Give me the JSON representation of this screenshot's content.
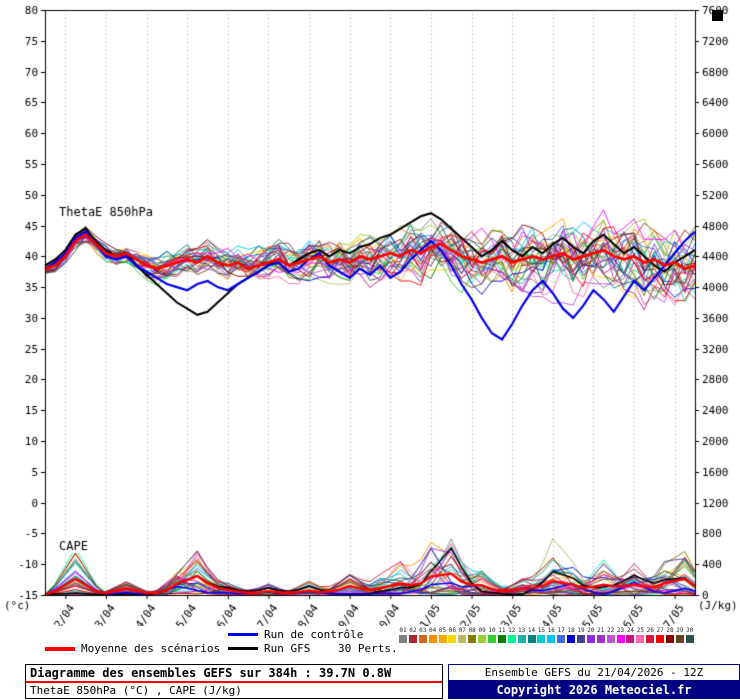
{
  "chart_data": {
    "type": "line",
    "x_start_label": "21/04 12Z",
    "x_step_hours": 6,
    "x_points": 65,
    "x_day_labels": [
      "22/04",
      "23/04",
      "24/04",
      "25/04",
      "26/04",
      "27/04",
      "28/04",
      "29/04",
      "30/04",
      "01/05",
      "02/05",
      "03/05",
      "04/05",
      "05/05",
      "06/05",
      "07/05"
    ],
    "y_left": {
      "label": "(°c)",
      "min": -15,
      "max": 80,
      "ticks": [
        80,
        75,
        70,
        65,
        60,
        55,
        50,
        45,
        40,
        35,
        30,
        25,
        20,
        15,
        10,
        5,
        0,
        -5,
        -10,
        -15
      ]
    },
    "y_right": {
      "label": "(J/kg)",
      "min": 0,
      "max": 7600,
      "ticks": [
        7600,
        7200,
        6800,
        6400,
        6000,
        5600,
        5200,
        4800,
        4400,
        4000,
        3600,
        3200,
        2800,
        2400,
        2000,
        1600,
        1200,
        800,
        400,
        0
      ]
    },
    "inner_labels": [
      "ThetaE 850hPa",
      "CAPE"
    ],
    "series": [
      {
        "name": "Moyenne des scénarios",
        "color": "#ff0000",
        "width": 2.8,
        "values": [
          38,
          38.5,
          40,
          42.5,
          43.5,
          42,
          40.5,
          40,
          40.5,
          39.5,
          38.5,
          38,
          38.5,
          39,
          39.5,
          39,
          40,
          39,
          38.5,
          39,
          38,
          38.5,
          39,
          39.5,
          38.5,
          39,
          39.5,
          40,
          39,
          39.5,
          39,
          40,
          39.5,
          40,
          40.5,
          40,
          41,
          40.5,
          41.5,
          42,
          41,
          40,
          39.5,
          39,
          39.5,
          40,
          39,
          39.5,
          40,
          39.5,
          40,
          40.5,
          39.5,
          40,
          40.5,
          41,
          40,
          39.5,
          40,
          39,
          39.5,
          38.5,
          39,
          38,
          38.5
        ]
      },
      {
        "name": "Run de contrôle",
        "color": "#0000ee",
        "width": 2.2,
        "values": [
          38,
          39,
          40.5,
          43,
          44,
          42,
          40,
          39.5,
          40,
          38.5,
          37.5,
          36.5,
          35.5,
          35,
          34.5,
          35.5,
          36,
          35,
          34.5,
          35.5,
          36.5,
          37.5,
          38.5,
          39,
          37.5,
          38,
          39.5,
          40.5,
          38.5,
          37.5,
          36.5,
          38,
          37,
          38.5,
          36.5,
          37.5,
          39.5,
          41,
          42.5,
          41,
          38.5,
          35.5,
          33,
          30,
          27.5,
          26.5,
          29,
          32,
          34.5,
          36,
          34,
          31.5,
          30,
          32,
          34.5,
          33,
          31,
          33.5,
          36,
          34.5,
          36.5,
          38.5,
          40.5,
          42.5,
          44
        ]
      },
      {
        "name": "Run GFS",
        "color": "#000000",
        "width": 2.0,
        "values": [
          38.5,
          39.5,
          41,
          43.5,
          44.5,
          42.5,
          41,
          40,
          40.5,
          38.5,
          37,
          35.5,
          34,
          32.5,
          31.5,
          30.5,
          31,
          32.5,
          34,
          35.5,
          36.5,
          37.5,
          38.5,
          39.5,
          38.5,
          39.5,
          40.5,
          41,
          40,
          41,
          40.5,
          41.5,
          42,
          43,
          43.5,
          44.5,
          45.5,
          46.5,
          47,
          46,
          44.5,
          43,
          41.5,
          40,
          41,
          42.5,
          41,
          40,
          41.5,
          40.5,
          42,
          43,
          41.5,
          40.5,
          42.5,
          43.5,
          42,
          40.5,
          41.5,
          40,
          38.5,
          37.5,
          39,
          40,
          41
        ]
      }
    ],
    "ensemble": {
      "count": 30,
      "seed": 20260421,
      "spread_base": 0.9,
      "spread_growth": 4.3,
      "colors": [
        "#808080",
        "#a52a2a",
        "#d2691e",
        "#ff8c00",
        "#ffa500",
        "#ffd700",
        "#bdb76b",
        "#808000",
        "#9acd32",
        "#32cd32",
        "#008000",
        "#00fa9a",
        "#20b2aa",
        "#008080",
        "#00ced1",
        "#00bfff",
        "#4169e1",
        "#0000cd",
        "#483d8b",
        "#8a2be2",
        "#9932cc",
        "#ba55d3",
        "#ff00ff",
        "#c71585",
        "#ff69b4",
        "#dc143c",
        "#ff0000",
        "#8b0000",
        "#654321",
        "#2f4f4f"
      ]
    },
    "cape": {
      "events": [
        {
          "i": 3,
          "amp": 620
        },
        {
          "i": 8,
          "amp": 180
        },
        {
          "i": 13,
          "amp": 260
        },
        {
          "i": 15,
          "amp": 560
        },
        {
          "i": 18,
          "amp": 150
        },
        {
          "i": 22,
          "amp": 160
        },
        {
          "i": 26,
          "amp": 220
        },
        {
          "i": 30,
          "amp": 260
        },
        {
          "i": 33,
          "amp": 200
        },
        {
          "i": 35,
          "amp": 460
        },
        {
          "i": 38,
          "amp": 620
        },
        {
          "i": 40,
          "amp": 820
        },
        {
          "i": 43,
          "amp": 320
        },
        {
          "i": 47,
          "amp": 280
        },
        {
          "i": 50,
          "amp": 700
        },
        {
          "i": 52,
          "amp": 300
        },
        {
          "i": 55,
          "amp": 460
        },
        {
          "i": 58,
          "amp": 420
        },
        {
          "i": 61,
          "amp": 350
        },
        {
          "i": 63,
          "amp": 520
        }
      ]
    }
  },
  "legend": {
    "mean_label": "Moyenne des scénarios",
    "control_label": "Run de contrôle",
    "gfs_label": "Run GFS",
    "perts_label": "30 Perts.",
    "pert_numbers": [
      "01",
      "02",
      "03",
      "04",
      "05",
      "06",
      "07",
      "08",
      "09",
      "10",
      "11",
      "12",
      "13",
      "14",
      "15",
      "16",
      "17",
      "18",
      "19",
      "20",
      "21",
      "22",
      "23",
      "24",
      "25",
      "26",
      "27",
      "28",
      "29",
      "30"
    ]
  },
  "footer": {
    "left_title": "Diagramme des ensembles GEFS sur 384h : 39.7N 0.8W",
    "left_subtitle": "ThetaE 850hPa (°C) , CAPE (J/kg)",
    "run_info": "Ensemble GEFS du 21/04/2026 - 12Z",
    "copyright": "Copyright 2026 Meteociel.fr"
  }
}
